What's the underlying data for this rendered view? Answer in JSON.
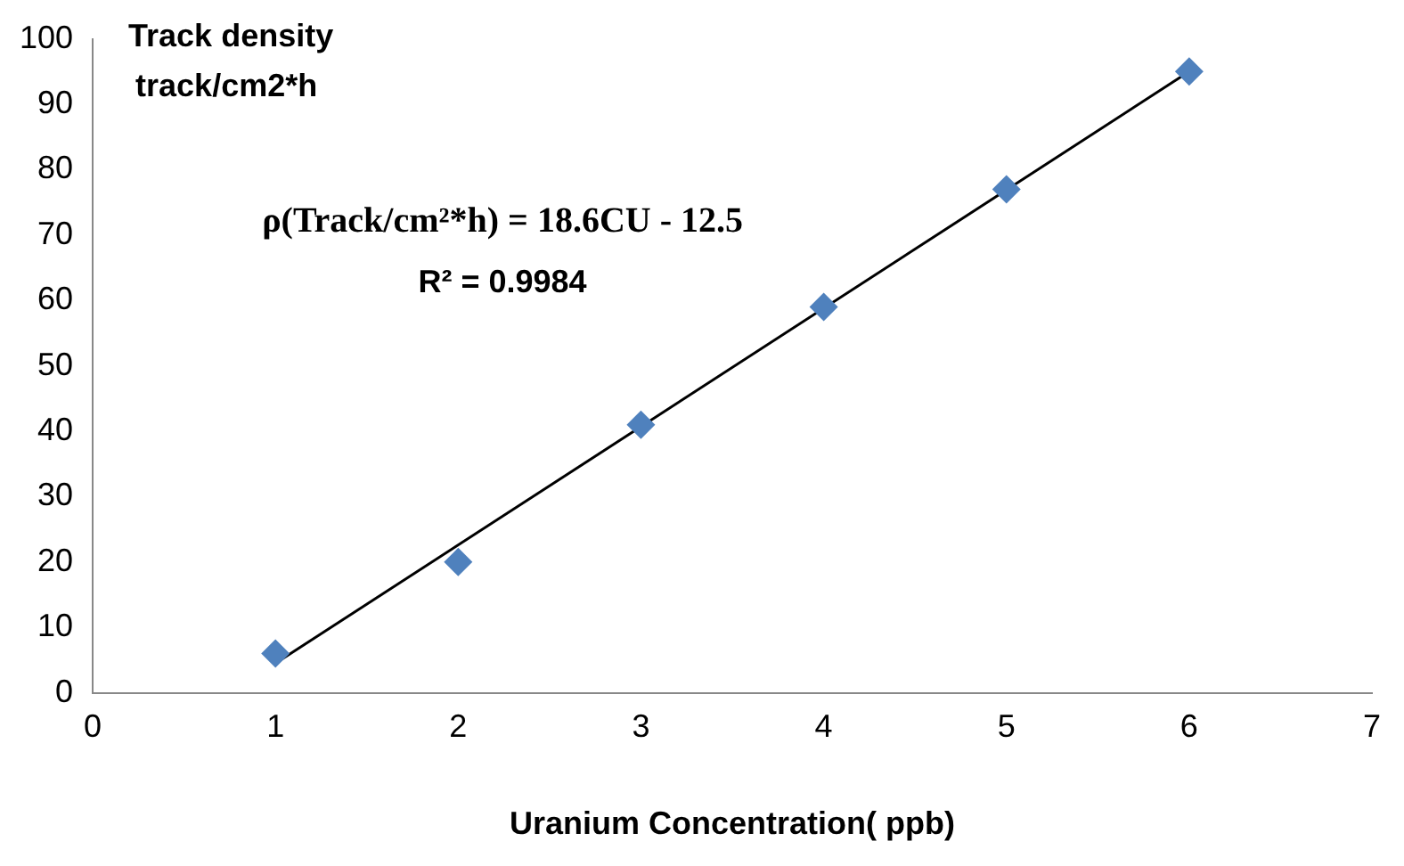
{
  "chart_data": {
    "type": "scatter",
    "xlabel": "Uranium Concentration( ppb)",
    "ylabel": "Track density track/cm2*h",
    "annotations": [
      "ρ(Track/cm²*h) = 18.6CU - 12.5",
      "R² = 0.9984"
    ],
    "xlim": [
      0,
      7
    ],
    "xticks": [
      0,
      1,
      2,
      3,
      4,
      5,
      6,
      7
    ],
    "ylim": [
      0,
      100
    ],
    "yticks": [
      0,
      10,
      20,
      30,
      40,
      50,
      60,
      70,
      80,
      90,
      100
    ],
    "grid": false,
    "legend": false,
    "marker": "diamond",
    "series": [
      {
        "type": "scatter",
        "color": "#4f81bd",
        "x": [
          1,
          2,
          3,
          4,
          5,
          6
        ],
        "values": [
          6,
          20,
          41,
          59,
          77,
          95
        ]
      },
      {
        "type": "line",
        "color": "#000000",
        "x": [
          1,
          6
        ],
        "values": [
          4.5,
          95
        ],
        "marker": "none",
        "line_style": "solid"
      }
    ]
  }
}
